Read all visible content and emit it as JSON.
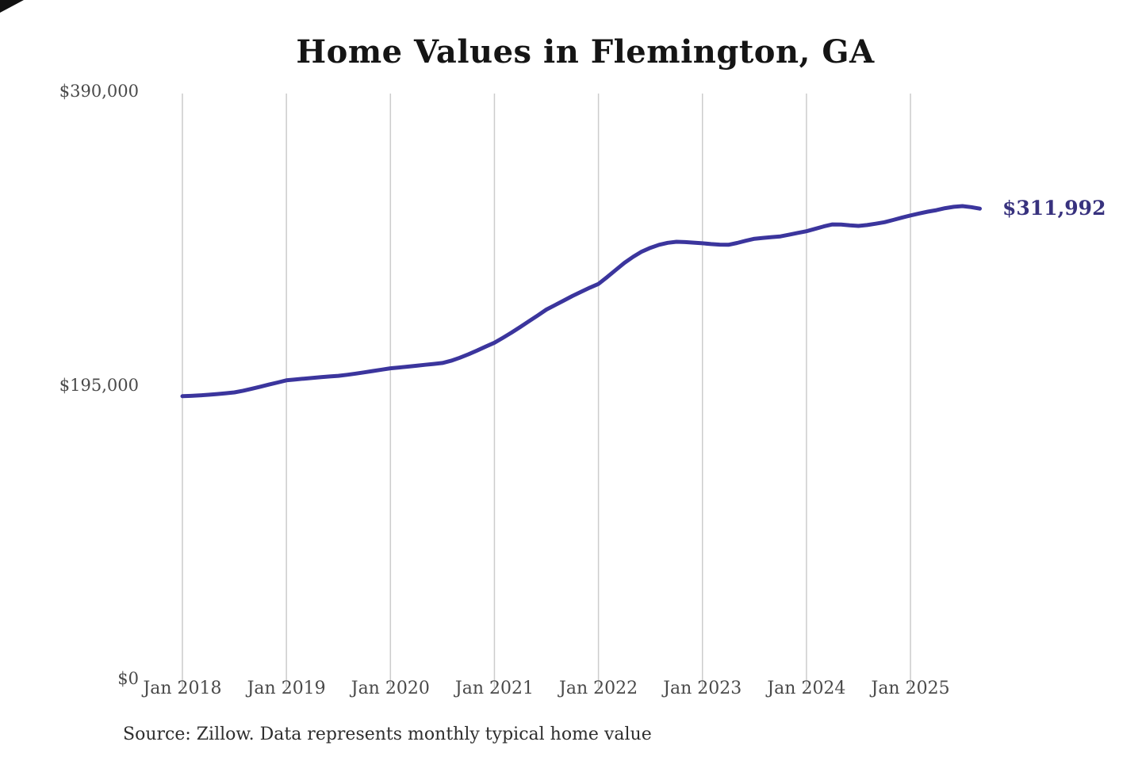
{
  "title": "Home Values in Flemington, GA",
  "annotation": {
    "end_value_label": "$311,992"
  },
  "source_note": "Source: Zillow. Data represents monthly typical home value",
  "colors": {
    "line": "#3b359d",
    "annotation_text": "#38327e",
    "gridline": "#cccccc",
    "axis_text": "#4a4a4a",
    "title_text": "#151515",
    "background": "#ffffff"
  },
  "chart_data": {
    "type": "line",
    "title": "Home Values in Flemington, GA",
    "unit": "USD",
    "interval": "monthly",
    "grid": "vertical-only",
    "legend": "none",
    "ylim": [
      0,
      390000
    ],
    "y_tick_values": [
      0,
      195000,
      390000
    ],
    "y_tick_labels": [
      "$0",
      "$195,000",
      "$390,000"
    ],
    "x_tick_labels": [
      "Jan 2018",
      "Jan 2019",
      "Jan 2020",
      "Jan 2021",
      "Jan 2022",
      "Jan 2023",
      "Jan 2024",
      "Jan 2025"
    ],
    "end_label": "$311,992",
    "x": [
      "2018-01",
      "2018-02",
      "2018-03",
      "2018-04",
      "2018-05",
      "2018-06",
      "2018-07",
      "2018-08",
      "2018-09",
      "2018-10",
      "2018-11",
      "2018-12",
      "2019-01",
      "2019-02",
      "2019-03",
      "2019-04",
      "2019-05",
      "2019-06",
      "2019-07",
      "2019-08",
      "2019-09",
      "2019-10",
      "2019-11",
      "2019-12",
      "2020-01",
      "2020-02",
      "2020-03",
      "2020-04",
      "2020-05",
      "2020-06",
      "2020-07",
      "2020-08",
      "2020-09",
      "2020-10",
      "2020-11",
      "2020-12",
      "2021-01",
      "2021-02",
      "2021-03",
      "2021-04",
      "2021-05",
      "2021-06",
      "2021-07",
      "2021-08",
      "2021-09",
      "2021-10",
      "2021-11",
      "2021-12",
      "2022-01",
      "2022-02",
      "2022-03",
      "2022-04",
      "2022-05",
      "2022-06",
      "2022-07",
      "2022-08",
      "2022-09",
      "2022-10",
      "2022-11",
      "2022-12",
      "2023-01",
      "2023-02",
      "2023-03",
      "2023-04",
      "2023-05",
      "2023-06",
      "2023-07",
      "2023-08",
      "2023-09",
      "2023-10",
      "2023-11",
      "2023-12",
      "2024-01",
      "2024-02",
      "2024-03",
      "2024-04",
      "2024-05",
      "2024-06",
      "2024-07",
      "2024-08",
      "2024-09",
      "2024-10",
      "2024-11",
      "2024-12",
      "2025-01",
      "2025-02",
      "2025-03",
      "2025-04",
      "2025-05",
      "2025-06",
      "2025-07",
      "2025-08",
      "2025-09"
    ],
    "values": [
      187500,
      187700,
      188000,
      188400,
      188900,
      189400,
      190000,
      191100,
      192400,
      193800,
      195200,
      196600,
      198000,
      198600,
      199100,
      199600,
      200100,
      200600,
      201000,
      201700,
      202500,
      203300,
      204200,
      205100,
      206000,
      206500,
      207100,
      207700,
      208300,
      208900,
      209500,
      211000,
      213000,
      215300,
      217800,
      220400,
      223000,
      226300,
      229800,
      233500,
      237300,
      241100,
      245000,
      248000,
      251000,
      254000,
      256800,
      259500,
      262000,
      266500,
      271300,
      276000,
      280000,
      283500,
      286000,
      288000,
      289300,
      290000,
      289800,
      289400,
      289000,
      288500,
      288100,
      288000,
      289200,
      290700,
      292000,
      292600,
      293100,
      293600,
      294700,
      295900,
      297000,
      298600,
      300200,
      301500,
      301400,
      300900,
      300500,
      301100,
      302000,
      303000,
      304500,
      306000,
      307500,
      308800,
      310000,
      311000,
      312300,
      313200,
      313700,
      313000,
      311992
    ]
  }
}
